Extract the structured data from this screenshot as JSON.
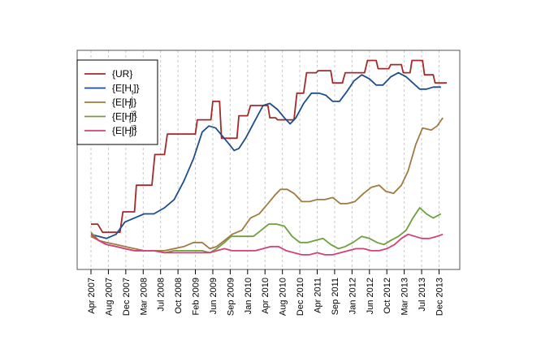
{
  "chart_data": {
    "type": "line",
    "x_ticks": [
      "Apr 2007",
      "Aug 2007",
      "Dec 2007",
      "Mar 2008",
      "Jul 2008",
      "Oct 2008",
      "Feb 2009",
      "Jun 2009",
      "Sep 2009",
      "Jan 2010",
      "Apr 2010",
      "Aug 2010",
      "Dec 2010",
      "Apr 2011",
      "Sep 2011",
      "Jan 2012",
      "Jun 2012",
      "Oct 2012",
      "Mar 2013",
      "Jul 2013",
      "Dec 2013"
    ],
    "grid": "vertical dashed",
    "legend_placement": "top-left",
    "ylim": [
      0,
      100
    ],
    "series": [
      {
        "name": "{UR}",
        "legend_main": "{UR}",
        "legend_sub": "",
        "legend_sup": "",
        "color": "#a32a2a",
        "step": true,
        "values": [
          [
            0,
            19
          ],
          [
            0.7,
            19
          ],
          [
            1.2,
            15
          ],
          [
            3,
            15
          ],
          [
            3.3,
            25
          ],
          [
            4.5,
            25
          ],
          [
            4.7,
            38
          ],
          [
            6.3,
            38
          ],
          [
            6.6,
            53
          ],
          [
            7.6,
            53
          ],
          [
            7.9,
            63
          ],
          [
            9.5,
            63
          ],
          [
            9.8,
            63
          ],
          [
            10.8,
            63
          ],
          [
            11,
            70
          ],
          [
            12.4,
            70
          ],
          [
            12.6,
            79
          ],
          [
            13.3,
            79
          ],
          [
            13.5,
            61
          ],
          [
            15.1,
            61
          ],
          [
            15.3,
            72
          ],
          [
            16.2,
            72
          ],
          [
            16.5,
            77
          ],
          [
            18.3,
            77
          ],
          [
            18.5,
            71
          ],
          [
            19.1,
            71
          ],
          [
            19.3,
            70
          ],
          [
            21,
            70
          ],
          [
            21.3,
            83
          ],
          [
            22,
            83
          ],
          [
            22.3,
            93
          ],
          [
            23.3,
            93
          ],
          [
            23.5,
            94
          ],
          [
            24.8,
            94
          ],
          [
            25,
            88
          ],
          [
            26,
            88
          ],
          [
            26.3,
            93
          ],
          [
            28.3,
            93
          ],
          [
            28.6,
            99
          ],
          [
            29.5,
            99
          ],
          [
            29.7,
            95
          ],
          [
            30.8,
            95
          ],
          [
            31,
            97
          ],
          [
            32.1,
            97
          ],
          [
            32.3,
            93
          ],
          [
            33,
            93
          ],
          [
            33.2,
            99
          ],
          [
            34.3,
            99
          ],
          [
            34.5,
            92
          ],
          [
            35.4,
            92
          ],
          [
            35.6,
            88
          ],
          [
            36.8,
            88
          ]
        ]
      },
      {
        "name": "{E[H1]}",
        "legend_main": "{E[H",
        "legend_sub": "t",
        "legend_sup": "",
        "color": "#1f4e8c",
        "step": false,
        "values": [
          [
            0,
            14
          ],
          [
            0.8,
            13
          ],
          [
            1.6,
            12
          ],
          [
            2.6,
            14
          ],
          [
            3.5,
            20
          ],
          [
            4.5,
            22
          ],
          [
            5.5,
            24
          ],
          [
            6.5,
            24
          ],
          [
            7.6,
            27
          ],
          [
            8.6,
            31
          ],
          [
            9.6,
            40
          ],
          [
            10.6,
            51
          ],
          [
            11.5,
            64
          ],
          [
            12.2,
            67
          ],
          [
            12.9,
            66
          ],
          [
            13.6,
            62
          ],
          [
            14.3,
            58
          ],
          [
            14.8,
            55
          ],
          [
            15.3,
            56
          ],
          [
            16,
            61
          ],
          [
            16.9,
            69
          ],
          [
            17.8,
            77
          ],
          [
            18.5,
            78
          ],
          [
            19.3,
            75
          ],
          [
            20,
            71
          ],
          [
            20.6,
            68
          ],
          [
            21.2,
            71
          ],
          [
            22,
            78
          ],
          [
            22.8,
            83
          ],
          [
            23.6,
            83
          ],
          [
            24.3,
            82
          ],
          [
            25,
            79
          ],
          [
            25.7,
            79
          ],
          [
            26.5,
            84
          ],
          [
            27.2,
            89
          ],
          [
            28,
            92
          ],
          [
            28.8,
            90
          ],
          [
            29.5,
            87
          ],
          [
            30.2,
            87
          ],
          [
            31,
            91
          ],
          [
            31.8,
            93
          ],
          [
            32.6,
            91
          ],
          [
            33.3,
            88
          ],
          [
            34,
            85
          ],
          [
            34.7,
            85
          ],
          [
            35.4,
            86
          ],
          [
            36.2,
            86
          ]
        ]
      },
      {
        "name": "{E[H1']}",
        "legend_main": "{E[H",
        "legend_sub": "t",
        "legend_sup": "'",
        "color": "#a07a40",
        "step": false,
        "values": [
          [
            0,
            13
          ],
          [
            0.8,
            11
          ],
          [
            1.6,
            10
          ],
          [
            2.6,
            9
          ],
          [
            3.5,
            8
          ],
          [
            4.5,
            7
          ],
          [
            5.5,
            6
          ],
          [
            6.5,
            6
          ],
          [
            7.6,
            6
          ],
          [
            8.6,
            7
          ],
          [
            9.6,
            8
          ],
          [
            10.6,
            10
          ],
          [
            11.5,
            10
          ],
          [
            12.3,
            7
          ],
          [
            13,
            8
          ],
          [
            13.8,
            11
          ],
          [
            14.6,
            14
          ],
          [
            15.6,
            16
          ],
          [
            16.5,
            22
          ],
          [
            17.4,
            24
          ],
          [
            18.3,
            29
          ],
          [
            19,
            33
          ],
          [
            19.6,
            36
          ],
          [
            20.3,
            36
          ],
          [
            21,
            34
          ],
          [
            21.8,
            30
          ],
          [
            22.6,
            30
          ],
          [
            23.4,
            31
          ],
          [
            24.2,
            31
          ],
          [
            25,
            32
          ],
          [
            25.8,
            29
          ],
          [
            26.5,
            29
          ],
          [
            27.3,
            30
          ],
          [
            28.2,
            34
          ],
          [
            29,
            37
          ],
          [
            29.8,
            38
          ],
          [
            30.5,
            35
          ],
          [
            31.3,
            34
          ],
          [
            32.1,
            38
          ],
          [
            32.8,
            45
          ],
          [
            33.6,
            58
          ],
          [
            34.3,
            66
          ],
          [
            35.2,
            65
          ],
          [
            35.8,
            67
          ],
          [
            36.4,
            71
          ]
        ]
      },
      {
        "name": "{E[H1'2]}",
        "legend_main": "{E[H",
        "legend_sub": "t",
        "legend_sup": "'2",
        "color": "#6ea03c",
        "step": false,
        "values": [
          [
            0,
            15
          ],
          [
            0.8,
            11
          ],
          [
            1.6,
            9
          ],
          [
            2.6,
            8
          ],
          [
            3.5,
            7
          ],
          [
            4.5,
            6
          ],
          [
            5.5,
            6
          ],
          [
            6.5,
            6
          ],
          [
            7.6,
            5
          ],
          [
            8.6,
            6
          ],
          [
            9.6,
            6
          ],
          [
            10.6,
            6
          ],
          [
            11.5,
            6
          ],
          [
            12.3,
            5
          ],
          [
            13,
            7
          ],
          [
            13.8,
            10
          ],
          [
            14.5,
            13
          ],
          [
            15.2,
            13
          ],
          [
            16,
            13
          ],
          [
            16.8,
            13
          ],
          [
            17.6,
            16
          ],
          [
            18.4,
            19
          ],
          [
            19.2,
            19
          ],
          [
            20,
            18
          ],
          [
            20.8,
            13
          ],
          [
            21.6,
            10
          ],
          [
            22.4,
            10
          ],
          [
            23.2,
            11
          ],
          [
            24,
            12
          ],
          [
            24.8,
            9
          ],
          [
            25.6,
            7
          ],
          [
            26.3,
            8
          ],
          [
            27.1,
            10
          ],
          [
            28,
            13
          ],
          [
            28.8,
            12
          ],
          [
            29.6,
            10
          ],
          [
            30.3,
            9
          ],
          [
            31,
            11
          ],
          [
            31.8,
            13
          ],
          [
            32.6,
            16
          ],
          [
            33.3,
            22
          ],
          [
            34,
            27
          ],
          [
            34.7,
            24
          ],
          [
            35.4,
            22
          ],
          [
            36.2,
            24
          ]
        ]
      },
      {
        "name": "{E[H1'3]}",
        "legend_main": "{E[H",
        "legend_sub": "t",
        "legend_sup": "'3",
        "color": "#d6407a",
        "step": false,
        "values": [
          [
            0,
            14
          ],
          [
            0.8,
            11
          ],
          [
            1.6,
            9
          ],
          [
            2.6,
            8
          ],
          [
            3.5,
            7
          ],
          [
            4.5,
            6
          ],
          [
            5.5,
            6
          ],
          [
            6.5,
            6
          ],
          [
            7.6,
            5
          ],
          [
            8.6,
            5
          ],
          [
            9.6,
            5
          ],
          [
            10.6,
            5
          ],
          [
            11.5,
            5
          ],
          [
            12.3,
            5
          ],
          [
            13,
            6
          ],
          [
            13.8,
            7
          ],
          [
            14.6,
            6
          ],
          [
            15.4,
            6
          ],
          [
            16.2,
            6
          ],
          [
            17,
            6
          ],
          [
            17.8,
            7
          ],
          [
            18.6,
            8
          ],
          [
            19.4,
            8
          ],
          [
            20.2,
            6
          ],
          [
            21,
            5
          ],
          [
            21.8,
            4
          ],
          [
            22.6,
            4
          ],
          [
            23.4,
            5
          ],
          [
            24.2,
            4
          ],
          [
            25,
            4
          ],
          [
            25.8,
            5
          ],
          [
            26.6,
            6
          ],
          [
            27.4,
            7
          ],
          [
            28.2,
            7
          ],
          [
            29,
            6
          ],
          [
            29.8,
            6
          ],
          [
            30.6,
            7
          ],
          [
            31.4,
            9
          ],
          [
            32.1,
            12
          ],
          [
            32.8,
            14
          ],
          [
            33.5,
            13
          ],
          [
            34.2,
            12
          ],
          [
            35,
            12
          ],
          [
            35.8,
            13
          ],
          [
            36.4,
            14
          ]
        ]
      }
    ]
  }
}
